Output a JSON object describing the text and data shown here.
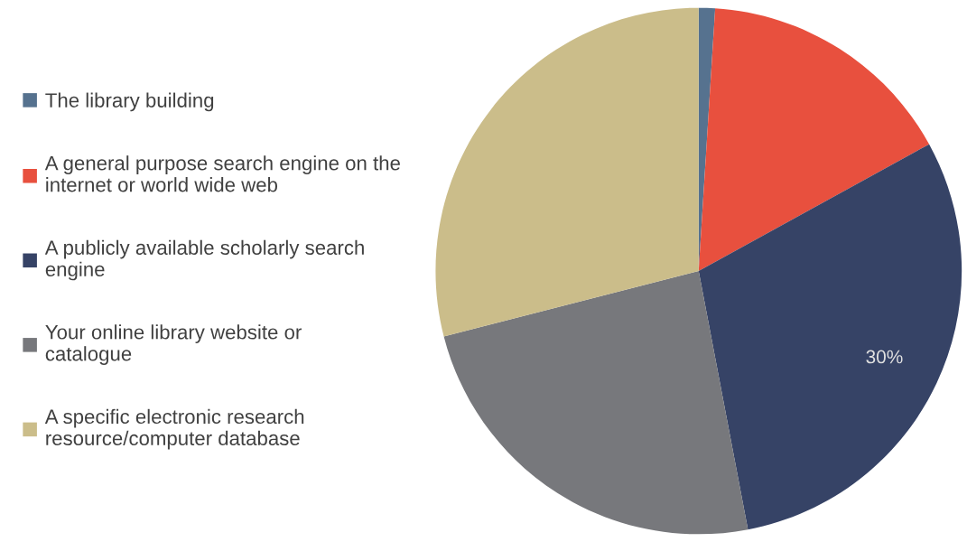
{
  "chart_data": {
    "type": "pie",
    "categories": [
      "The library building",
      "A general purpose search engine on the internet or world wide web",
      "A publicly available scholarly search engine",
      "Your online library website or catalogue",
      "A specific electronic research resource/computer database"
    ],
    "values": [
      1,
      16,
      30,
      24,
      29
    ],
    "colors": [
      "#56728f",
      "#e8503e",
      "#364366",
      "#77787c",
      "#cbbd8a"
    ],
    "value_labels": [
      null,
      null,
      "30%",
      null,
      null
    ],
    "legend": "left"
  }
}
